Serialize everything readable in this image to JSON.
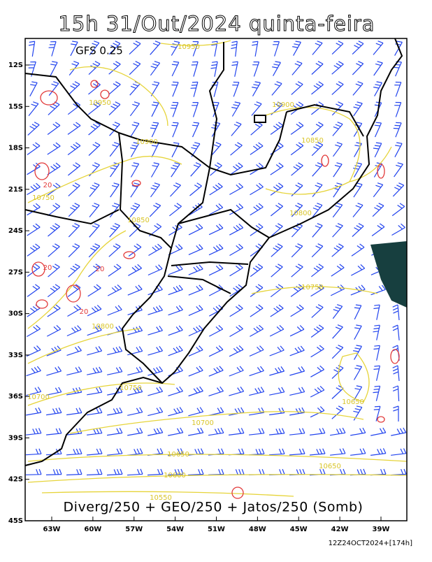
{
  "header": {
    "title": "15h 31/Out/2024 quinta-feira",
    "model": "GFS 0.25"
  },
  "caption": "Diverg/250 + GEO/250 + Jatos/250 (Somb)",
  "run_label": "12Z24OCT2024+[174h]",
  "axes": {
    "lat_ticks": [
      {
        "value": -12,
        "label": "12S"
      },
      {
        "value": -15,
        "label": "15S"
      },
      {
        "value": -18,
        "label": "18S"
      },
      {
        "value": -21,
        "label": "21S"
      },
      {
        "value": -24,
        "label": "24S"
      },
      {
        "value": -27,
        "label": "27S"
      },
      {
        "value": -30,
        "label": "30S"
      },
      {
        "value": -33,
        "label": "33S"
      },
      {
        "value": -36,
        "label": "36S"
      },
      {
        "value": -39,
        "label": "39S"
      },
      {
        "value": -42,
        "label": "42S"
      },
      {
        "value": -45,
        "label": "45S"
      }
    ],
    "lon_ticks": [
      {
        "value": -63,
        "label": "63W"
      },
      {
        "value": -60,
        "label": "60W"
      },
      {
        "value": -57,
        "label": "57W"
      },
      {
        "value": -54,
        "label": "54W"
      },
      {
        "value": -51,
        "label": "51W"
      },
      {
        "value": -48,
        "label": "48W"
      },
      {
        "value": -45,
        "label": "45W"
      },
      {
        "value": -42,
        "label": "42W"
      },
      {
        "value": -39,
        "label": "39W"
      }
    ]
  },
  "contour_labels": [
    "10950",
    "10950",
    "10900",
    "10850",
    "10900",
    "10850",
    "10800",
    "10750",
    "10750",
    "10800",
    "10750",
    "10700",
    "10700",
    "10650",
    "10650",
    "10650",
    "10600",
    "10550",
    "20",
    "20",
    "20",
    "20"
  ]
}
